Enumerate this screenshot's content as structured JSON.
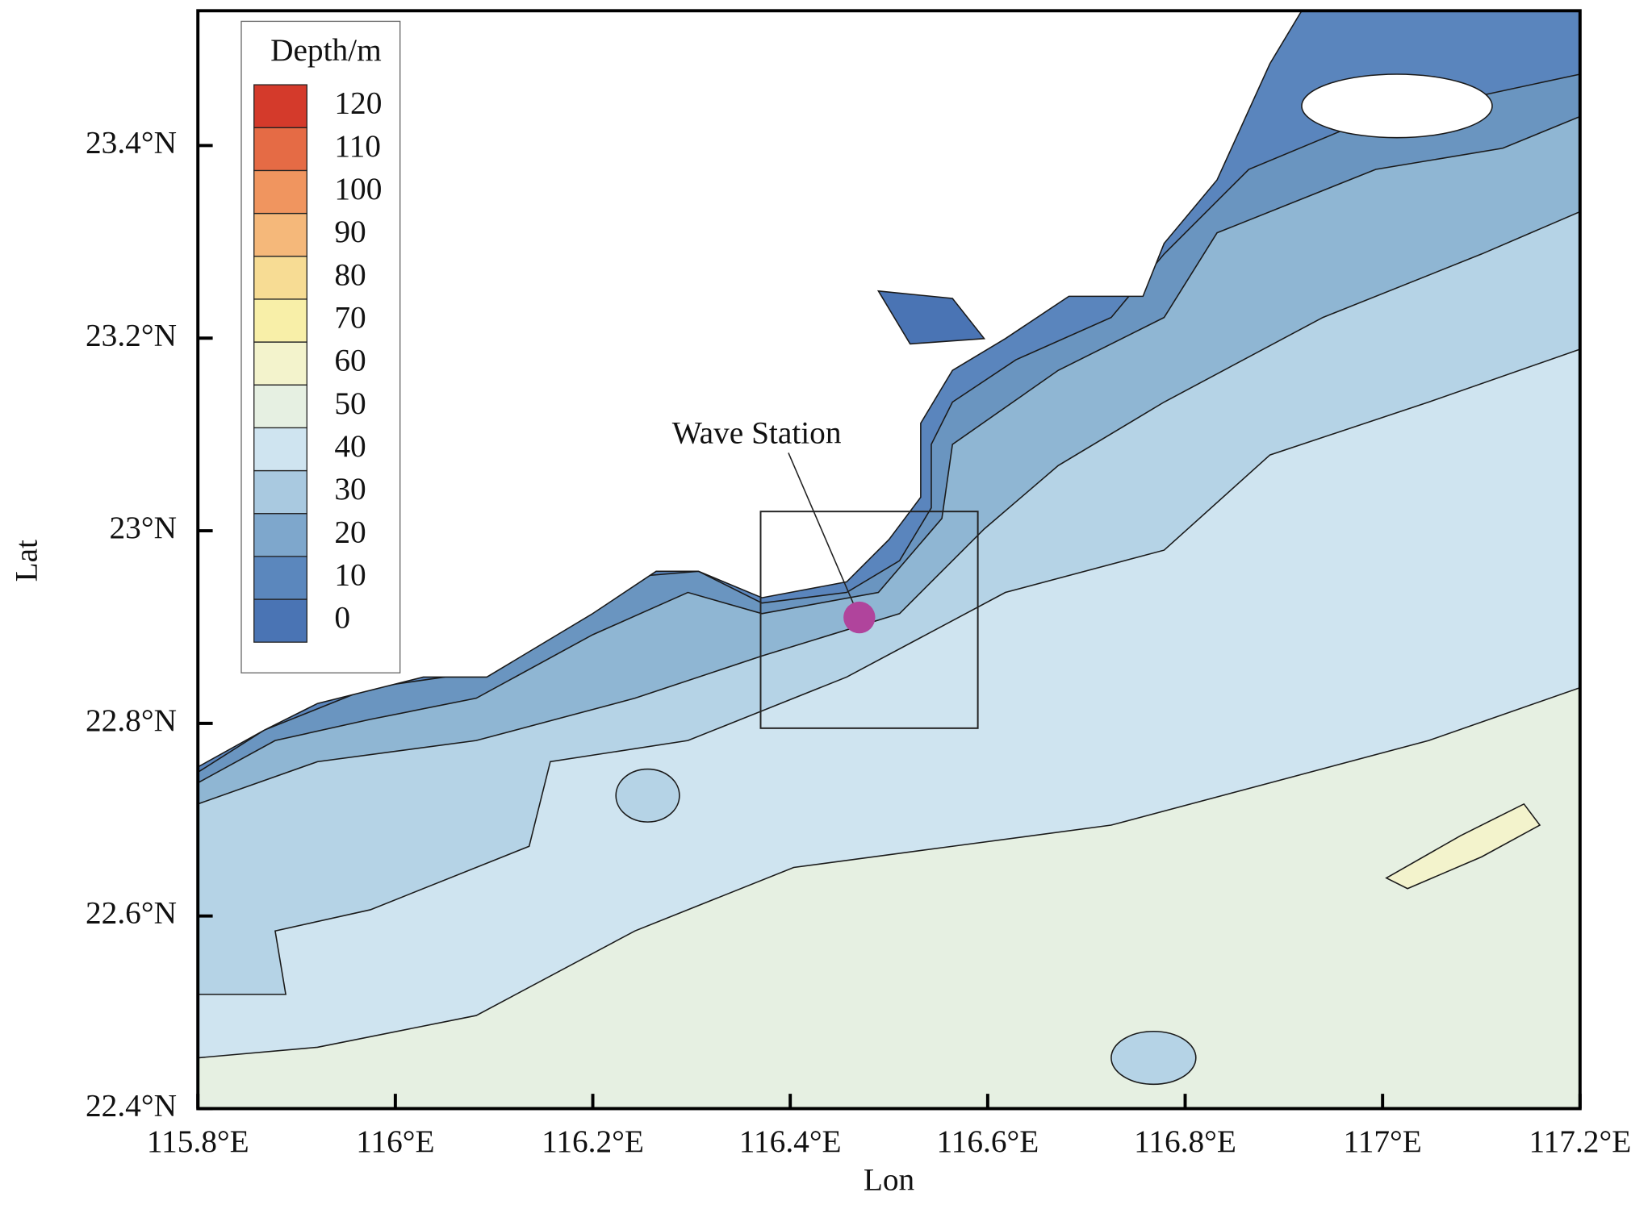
{
  "map": {
    "x_axis": {
      "label": "Lon",
      "lim": [
        115.8,
        117.2
      ],
      "ticks": [
        {
          "value": 115.8,
          "label": "115.8°E"
        },
        {
          "value": 116,
          "label": "116°E"
        },
        {
          "value": 116.2,
          "label": "116.2°E"
        },
        {
          "value": 116.4,
          "label": "116.4°E"
        },
        {
          "value": 116.6,
          "label": "116.6°E"
        },
        {
          "value": 116.8,
          "label": "116.8°E"
        },
        {
          "value": 117,
          "label": "117°E"
        },
        {
          "value": 117.2,
          "label": "117.2°E"
        }
      ]
    },
    "y_axis": {
      "label": "Lat",
      "lim": [
        22.4,
        23.54
      ],
      "ticks": [
        {
          "value": 22.4,
          "label": "22.4°N"
        },
        {
          "value": 22.6,
          "label": "22.6°N"
        },
        {
          "value": 22.8,
          "label": "22.8°N"
        },
        {
          "value": 23,
          "label": "23°N"
        },
        {
          "value": 23.2,
          "label": "23.2°N"
        },
        {
          "value": 23.4,
          "label": "23.4°N"
        }
      ]
    },
    "colorbar": {
      "title": "Depth/m",
      "levels": [
        0,
        10,
        20,
        30,
        40,
        50,
        60,
        70,
        80,
        90,
        100,
        110,
        120
      ],
      "colors": [
        "#4a74b4",
        "#5b87bd",
        "#7ea7cc",
        "#a9c9e0",
        "#cfe4f0",
        "#e6f0e2",
        "#f3f3cc",
        "#f8efa8",
        "#f7dc94",
        "#f5b87a",
        "#f0955f",
        "#e56b45",
        "#d43a2b"
      ]
    },
    "station": {
      "label": "Wave Station",
      "lon": 116.47,
      "lat": 22.91,
      "color": "#b0449c"
    },
    "box": {
      "lon": [
        116.37,
        116.59
      ],
      "lat": [
        22.795,
        23.02
      ]
    }
  }
}
